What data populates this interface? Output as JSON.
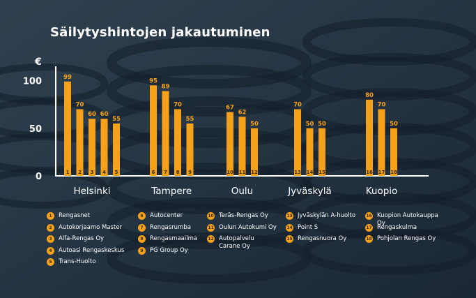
{
  "chart_data": {
    "type": "bar",
    "title": "Säilytyshintojen jakautuminen",
    "ylabel": "€",
    "ylim": [
      0,
      115
    ],
    "yticks": [
      0,
      50,
      100
    ],
    "bar_color": "#f5a21a",
    "groups": [
      {
        "city": "Helsinki",
        "bars": [
          {
            "n": 1,
            "value": 99
          },
          {
            "n": 2,
            "value": 70
          },
          {
            "n": 3,
            "value": 60
          },
          {
            "n": 4,
            "value": 60
          },
          {
            "n": 5,
            "value": 55
          }
        ]
      },
      {
        "city": "Tampere",
        "bars": [
          {
            "n": 6,
            "value": 95
          },
          {
            "n": 7,
            "value": 89
          },
          {
            "n": 8,
            "value": 70
          },
          {
            "n": 9,
            "value": 55
          }
        ]
      },
      {
        "city": "Oulu",
        "bars": [
          {
            "n": 10,
            "value": 67
          },
          {
            "n": 11,
            "value": 62
          },
          {
            "n": 12,
            "value": 50
          }
        ]
      },
      {
        "city": "Jyväskylä",
        "bars": [
          {
            "n": 13,
            "value": 70
          },
          {
            "n": 14,
            "value": 50
          },
          {
            "n": 15,
            "value": 50
          }
        ]
      },
      {
        "city": "Kuopio",
        "bars": [
          {
            "n": 16,
            "value": 80
          },
          {
            "n": 17,
            "value": 70
          },
          {
            "n": 18,
            "value": 50
          }
        ]
      }
    ],
    "legend": [
      {
        "n": "1",
        "label": "Rengasnet"
      },
      {
        "n": "2",
        "label": "Autokorjaamo Master"
      },
      {
        "n": "3",
        "label": "Alfa-Rengas Oy"
      },
      {
        "n": "4",
        "label": "Autoasi Rengaskeskus"
      },
      {
        "n": "5",
        "label": "Trans-Huolto"
      },
      {
        "n": "6",
        "label": "Autocenter"
      },
      {
        "n": "7",
        "label": "Rengasrumba"
      },
      {
        "n": "8",
        "label": "Rengasmaailma"
      },
      {
        "n": "9",
        "label": "PG Group Oy"
      },
      {
        "n": "10",
        "label": "Teräs-Rengas Oy"
      },
      {
        "n": "11",
        "label": "Oulun Autokumi Oy"
      },
      {
        "n": "12",
        "label": "Autopalvelu\nCarane Oy"
      },
      {
        "n": "13",
        "label": "Jyväskylän A-huolto"
      },
      {
        "n": "14",
        "label": "Point S"
      },
      {
        "n": "15",
        "label": "Rengasnuora Oy"
      },
      {
        "n": "16",
        "label": "Kuopion Autokauppa Oy"
      },
      {
        "n": "17",
        "label": "Rengaskulma"
      },
      {
        "n": "18",
        "label": "Pohjolan Rengas Oy"
      }
    ]
  }
}
